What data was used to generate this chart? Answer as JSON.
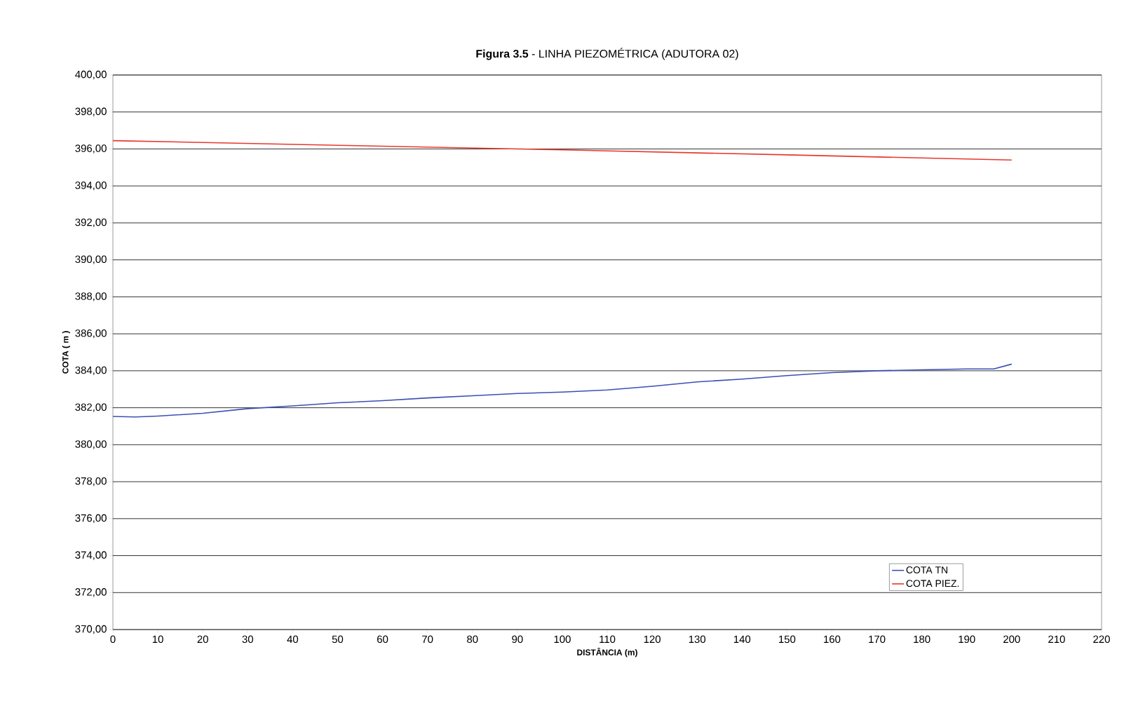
{
  "chart_data": {
    "type": "line",
    "title": "**Figura 3.5** - LINHA PIEZOMÉTRICA (ADUTORA 02)",
    "xlabel": "DISTÂNCIA (m)",
    "ylabel": "COTA ( m )",
    "x": [
      0,
      5,
      10,
      20,
      30,
      40,
      50,
      60,
      70,
      80,
      90,
      100,
      110,
      120,
      130,
      140,
      150,
      160,
      170,
      180,
      190,
      196,
      200
    ],
    "series": [
      {
        "name": "COTA TN",
        "color": "#3c4fb4",
        "values": [
          381.53,
          381.5,
          381.55,
          381.7,
          381.95,
          382.1,
          382.27,
          382.38,
          382.53,
          382.65,
          382.77,
          382.85,
          382.96,
          383.16,
          383.4,
          383.55,
          383.74,
          383.9,
          384.0,
          384.05,
          384.1,
          384.1,
          384.36
        ]
      },
      {
        "name": "COTA PIEZ.",
        "color": "#e8382c",
        "x": [
          0,
          50,
          100,
          150,
          200
        ],
        "values": [
          396.45,
          396.2,
          395.95,
          395.68,
          395.4
        ]
      }
    ],
    "xlim": [
      0,
      220
    ],
    "xticks": [
      0,
      10,
      20,
      30,
      40,
      50,
      60,
      70,
      80,
      90,
      100,
      110,
      120,
      130,
      140,
      150,
      160,
      170,
      180,
      190,
      200,
      210,
      220
    ],
    "ylim": [
      370,
      400
    ],
    "yticks": [
      {
        "value": 370,
        "label": "370,00"
      },
      {
        "value": 372,
        "label": "372,00"
      },
      {
        "value": 374,
        "label": "374,00"
      },
      {
        "value": 376,
        "label": "376,00"
      },
      {
        "value": 378,
        "label": "378,00"
      },
      {
        "value": 380,
        "label": "380,00"
      },
      {
        "value": 382,
        "label": "382,00"
      },
      {
        "value": 384,
        "label": "384,00"
      },
      {
        "value": 386,
        "label": "386,00"
      },
      {
        "value": 388,
        "label": "388,00"
      },
      {
        "value": 390,
        "label": "390,00"
      },
      {
        "value": 392,
        "label": "392,00"
      },
      {
        "value": 394,
        "label": "394,00"
      },
      {
        "value": 396,
        "label": "396,00"
      },
      {
        "value": 398,
        "label": "398,00"
      },
      {
        "value": 400,
        "label": "400,00"
      }
    ],
    "grid": "y",
    "legend": "bottom right",
    "marker": "none",
    "line_style": "solid"
  }
}
